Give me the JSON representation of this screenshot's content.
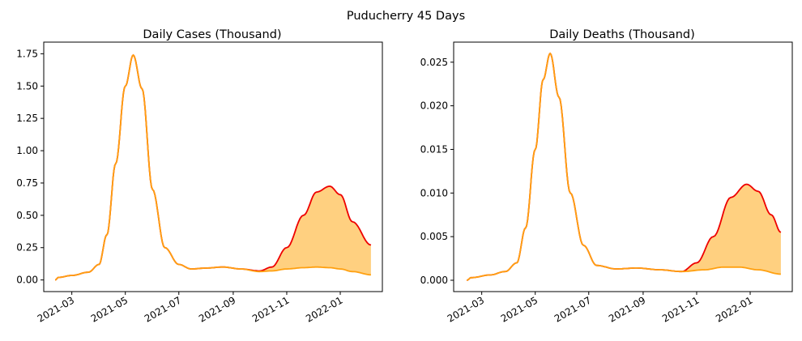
{
  "figure_title": "Puducherry 45 Days",
  "colors": {
    "upper": "#ee0000",
    "lower": "#ffa010",
    "fill": "#ffd080"
  },
  "chart_data": [
    {
      "type": "line",
      "title": "Daily Cases (Thousand)",
      "xlabel": "",
      "ylabel": "",
      "x_ticks": [
        "2021-03",
        "2021-05",
        "2021-07",
        "2021-09",
        "2021-11",
        "2022-01"
      ],
      "y_ticks": [
        "0.00",
        "0.25",
        "0.50",
        "0.75",
        "1.00",
        "1.25",
        "1.50",
        "1.75"
      ],
      "ylim": [
        -0.09,
        1.84
      ],
      "grid": false,
      "series": [
        {
          "role": "upper",
          "points": [
            [
              "2021-02-10",
              0.0
            ],
            [
              "2021-02-14",
              0.02
            ],
            [
              "2021-03-01",
              0.035
            ],
            [
              "2021-03-20",
              0.06
            ],
            [
              "2021-04-01",
              0.12
            ],
            [
              "2021-04-10",
              0.35
            ],
            [
              "2021-04-20",
              0.9
            ],
            [
              "2021-05-01",
              1.5
            ],
            [
              "2021-05-10",
              1.74
            ],
            [
              "2021-05-20",
              1.48
            ],
            [
              "2021-06-01",
              0.7
            ],
            [
              "2021-06-15",
              0.25
            ],
            [
              "2021-07-01",
              0.12
            ],
            [
              "2021-07-15",
              0.085
            ],
            [
              "2021-08-01",
              0.092
            ],
            [
              "2021-08-20",
              0.1
            ],
            [
              "2021-09-10",
              0.085
            ],
            [
              "2021-10-01",
              0.07
            ],
            [
              "2021-10-15",
              0.1
            ],
            [
              "2021-11-01",
              0.25
            ],
            [
              "2021-11-20",
              0.5
            ],
            [
              "2021-12-05",
              0.68
            ],
            [
              "2021-12-20",
              0.725
            ],
            [
              "2022-01-01",
              0.66
            ],
            [
              "2022-01-15",
              0.45
            ],
            [
              "2022-02-05",
              0.27
            ]
          ]
        },
        {
          "role": "lower",
          "points": [
            [
              "2021-02-10",
              0.0
            ],
            [
              "2021-02-14",
              0.02
            ],
            [
              "2021-03-01",
              0.035
            ],
            [
              "2021-03-20",
              0.06
            ],
            [
              "2021-04-01",
              0.12
            ],
            [
              "2021-04-10",
              0.35
            ],
            [
              "2021-04-20",
              0.9
            ],
            [
              "2021-05-01",
              1.5
            ],
            [
              "2021-05-10",
              1.74
            ],
            [
              "2021-05-20",
              1.48
            ],
            [
              "2021-06-01",
              0.7
            ],
            [
              "2021-06-15",
              0.25
            ],
            [
              "2021-07-01",
              0.12
            ],
            [
              "2021-07-15",
              0.085
            ],
            [
              "2021-08-01",
              0.092
            ],
            [
              "2021-08-20",
              0.1
            ],
            [
              "2021-09-10",
              0.085
            ],
            [
              "2021-10-01",
              0.065
            ],
            [
              "2021-10-15",
              0.07
            ],
            [
              "2021-11-01",
              0.085
            ],
            [
              "2021-11-20",
              0.095
            ],
            [
              "2021-12-05",
              0.1
            ],
            [
              "2021-12-20",
              0.095
            ],
            [
              "2022-01-01",
              0.085
            ],
            [
              "2022-01-15",
              0.065
            ],
            [
              "2022-02-05",
              0.04
            ]
          ]
        }
      ]
    },
    {
      "type": "line",
      "title": "Daily Deaths (Thousand)",
      "xlabel": "",
      "ylabel": "",
      "x_ticks": [
        "2021-03",
        "2021-05",
        "2021-07",
        "2021-09",
        "2021-11",
        "2022-01"
      ],
      "y_ticks": [
        "0.000",
        "0.005",
        "0.010",
        "0.015",
        "0.020",
        "0.025"
      ],
      "ylim": [
        -0.0013,
        0.0273
      ],
      "grid": false,
      "series": [
        {
          "role": "upper",
          "points": [
            [
              "2021-02-12",
              0.0
            ],
            [
              "2021-02-17",
              0.0003
            ],
            [
              "2021-03-10",
              0.0006
            ],
            [
              "2021-03-28",
              0.001
            ],
            [
              "2021-04-10",
              0.002
            ],
            [
              "2021-04-20",
              0.006
            ],
            [
              "2021-05-01",
              0.015
            ],
            [
              "2021-05-10",
              0.023
            ],
            [
              "2021-05-18",
              0.026
            ],
            [
              "2021-05-28",
              0.021
            ],
            [
              "2021-06-10",
              0.01
            ],
            [
              "2021-06-25",
              0.004
            ],
            [
              "2021-07-10",
              0.0017
            ],
            [
              "2021-08-01",
              0.0013
            ],
            [
              "2021-08-25",
              0.0014
            ],
            [
              "2021-09-20",
              0.0012
            ],
            [
              "2021-10-15",
              0.001
            ],
            [
              "2021-11-01",
              0.002
            ],
            [
              "2021-11-20",
              0.005
            ],
            [
              "2021-12-10",
              0.0095
            ],
            [
              "2021-12-28",
              0.011
            ],
            [
              "2022-01-10",
              0.0102
            ],
            [
              "2022-01-25",
              0.0075
            ],
            [
              "2022-02-05",
              0.0055
            ]
          ]
        },
        {
          "role": "lower",
          "points": [
            [
              "2021-02-12",
              0.0
            ],
            [
              "2021-02-17",
              0.0003
            ],
            [
              "2021-03-10",
              0.0006
            ],
            [
              "2021-03-28",
              0.001
            ],
            [
              "2021-04-10",
              0.002
            ],
            [
              "2021-04-20",
              0.006
            ],
            [
              "2021-05-01",
              0.015
            ],
            [
              "2021-05-10",
              0.023
            ],
            [
              "2021-05-18",
              0.026
            ],
            [
              "2021-05-28",
              0.021
            ],
            [
              "2021-06-10",
              0.01
            ],
            [
              "2021-06-25",
              0.004
            ],
            [
              "2021-07-10",
              0.0017
            ],
            [
              "2021-08-01",
              0.0013
            ],
            [
              "2021-08-25",
              0.0014
            ],
            [
              "2021-09-20",
              0.0012
            ],
            [
              "2021-10-15",
              0.001
            ],
            [
              "2021-11-10",
              0.0012
            ],
            [
              "2021-12-01",
              0.0015
            ],
            [
              "2021-12-20",
              0.0015
            ],
            [
              "2022-01-10",
              0.0012
            ],
            [
              "2022-02-05",
              0.0007
            ]
          ]
        }
      ]
    }
  ]
}
